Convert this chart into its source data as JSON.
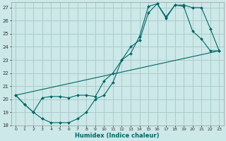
{
  "xlabel": "Humidex (Indice chaleur)",
  "xlim": [
    -0.5,
    23.5
  ],
  "ylim": [
    18,
    27.4
  ],
  "xticks": [
    0,
    1,
    2,
    3,
    4,
    5,
    6,
    7,
    8,
    9,
    10,
    11,
    12,
    13,
    14,
    15,
    16,
    17,
    18,
    19,
    20,
    21,
    22,
    23
  ],
  "yticks": [
    18,
    19,
    20,
    21,
    22,
    23,
    24,
    25,
    26,
    27
  ],
  "bg_color": "#cce8e8",
  "grid_color": "#aacccc",
  "line_color": "#006666",
  "curve1_x": [
    0,
    1,
    2,
    3,
    4,
    5,
    6,
    7,
    8,
    9,
    10,
    11,
    12,
    13,
    14,
    15,
    16,
    17,
    18,
    19,
    20,
    21,
    22,
    23
  ],
  "curve1_y": [
    20.3,
    19.6,
    19.0,
    18.5,
    18.2,
    18.2,
    18.2,
    18.5,
    19.0,
    20.0,
    20.3,
    21.3,
    23.0,
    23.5,
    24.8,
    27.1,
    27.3,
    26.2,
    27.2,
    27.1,
    25.2,
    24.6,
    23.7,
    23.7
  ],
  "curve2_x": [
    0,
    1,
    2,
    3,
    4,
    5,
    6,
    7,
    8,
    9,
    10,
    11,
    12,
    13,
    14,
    15,
    16,
    17,
    18,
    19,
    20,
    21,
    22,
    23
  ],
  "curve2_y": [
    20.3,
    19.6,
    19.0,
    20.1,
    20.2,
    20.2,
    20.1,
    20.3,
    20.3,
    20.2,
    21.4,
    22.0,
    23.0,
    24.0,
    24.5,
    26.6,
    27.3,
    26.3,
    27.2,
    27.2,
    27.0,
    27.0,
    25.4,
    23.7
  ],
  "line3_x": [
    0,
    23
  ],
  "line3_y": [
    20.3,
    23.7
  ]
}
